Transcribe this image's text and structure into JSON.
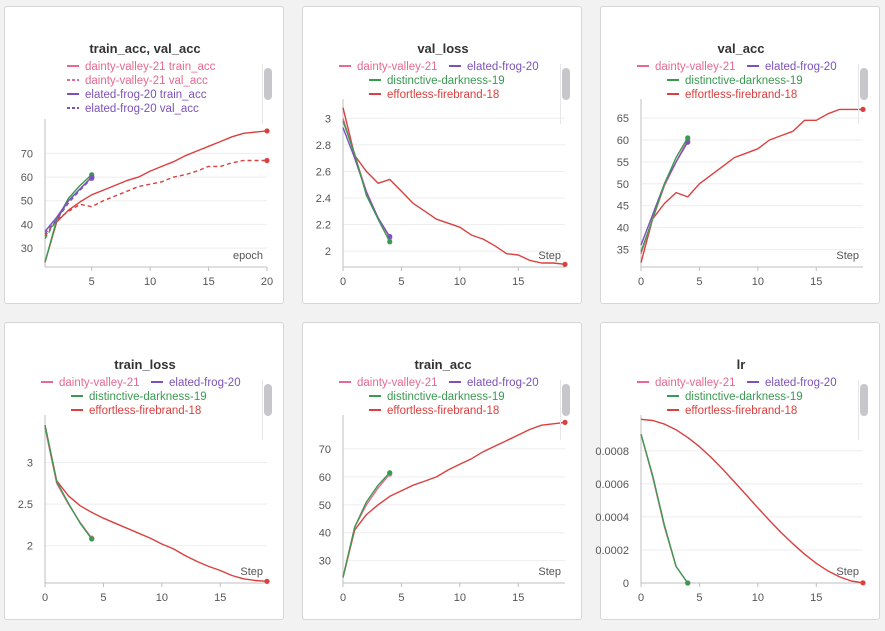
{
  "colors": {
    "dainty-valley-21": "#e8698f",
    "elated-frog-20": "#7b52b9",
    "distinctive-darkness-19": "#3a9a52",
    "effortless-firebrand-18": "#d9403f"
  },
  "chart_data": [
    {
      "id": "p1",
      "type": "line",
      "title": "train_acc, val_acc",
      "xlabel": "epoch",
      "ylabel": "",
      "xlim": [
        1,
        20
      ],
      "ylim": [
        22,
        82
      ],
      "xticks": [
        5,
        10,
        15,
        20
      ],
      "yticks": [
        30,
        40,
        50,
        60,
        70
      ],
      "legend_layout": "single",
      "legend": [
        {
          "label": "dainty-valley-21 train_acc",
          "color": "#e8698f",
          "dash": false
        },
        {
          "label": "dainty-valley-21 val_acc",
          "color": "#e8698f",
          "dash": true
        },
        {
          "label": "elated-frog-20 train_acc",
          "color": "#7b52b9",
          "dash": false
        },
        {
          "label": "elated-frog-20 val_acc",
          "color": "#7b52b9",
          "dash": true
        }
      ],
      "series": [
        {
          "color": "#d9403f",
          "dash": false,
          "x": [
            1,
            2,
            3,
            4,
            5,
            6,
            7,
            8,
            9,
            10,
            11,
            12,
            13,
            14,
            15,
            16,
            17,
            18,
            19,
            20
          ],
          "y": [
            24,
            41,
            46,
            49.5,
            52.5,
            54.5,
            56.5,
            58.5,
            60,
            62.5,
            64.5,
            66.5,
            69,
            71,
            73,
            75,
            77,
            78.5,
            79,
            79.5
          ]
        },
        {
          "color": "#d9403f",
          "dash": true,
          "x": [
            1,
            2,
            3,
            4,
            5,
            6,
            7,
            8,
            9,
            10,
            11,
            12,
            13,
            14,
            15,
            16,
            17,
            18,
            19,
            20
          ],
          "y": [
            35,
            42,
            45.5,
            48.5,
            47.5,
            50,
            52,
            54,
            56,
            57,
            58,
            60,
            61,
            62.5,
            64.5,
            64.5,
            66,
            67,
            67,
            67
          ]
        },
        {
          "color": "#3a9a52",
          "dash": false,
          "x": [
            1,
            2,
            3,
            4,
            5
          ],
          "y": [
            24,
            42,
            51,
            56.5,
            61
          ]
        },
        {
          "color": "#3a9a52",
          "dash": true,
          "x": [
            1,
            2,
            3,
            4,
            5
          ],
          "y": [
            34,
            42,
            50,
            55,
            60
          ]
        },
        {
          "color": "#7b52b9",
          "dash": false,
          "x": [
            1,
            2,
            3,
            4,
            5
          ],
          "y": [
            37,
            43,
            50,
            55,
            60
          ]
        },
        {
          "color": "#7b52b9",
          "dash": true,
          "x": [
            1,
            2,
            3,
            4,
            5
          ],
          "y": [
            36,
            42,
            49,
            54.5,
            59.5
          ]
        }
      ]
    },
    {
      "id": "p2",
      "type": "line",
      "title": "val_loss",
      "xlabel": "Step",
      "ylabel": "",
      "xlim": [
        0,
        19
      ],
      "ylim": [
        1.88,
        3.1
      ],
      "xticks": [
        0,
        5,
        10,
        15
      ],
      "yticks": [
        2,
        2.2,
        2.4,
        2.6,
        2.8,
        3
      ],
      "legend_layout": "grid",
      "legend": [
        {
          "label": "dainty-valley-21",
          "color": "#e8698f",
          "dash": false
        },
        {
          "label": "elated-frog-20",
          "color": "#7b52b9",
          "dash": false
        },
        {
          "label": "distinctive-darkness-19",
          "color": "#3a9a52",
          "dash": false
        },
        {
          "label": "effortless-firebrand-18",
          "color": "#d9403f",
          "dash": false
        }
      ],
      "series": [
        {
          "color": "#d9403f",
          "dash": false,
          "x": [
            0,
            1,
            2,
            3,
            4,
            5,
            6,
            7,
            8,
            9,
            10,
            11,
            12,
            13,
            14,
            15,
            16,
            17,
            18,
            19
          ],
          "y": [
            3.08,
            2.72,
            2.6,
            2.51,
            2.54,
            2.45,
            2.36,
            2.3,
            2.24,
            2.21,
            2.18,
            2.12,
            2.09,
            2.04,
            1.98,
            1.97,
            1.93,
            1.91,
            1.91,
            1.9
          ]
        },
        {
          "color": "#e8698f",
          "dash": false,
          "x": [
            0,
            1,
            2,
            3,
            4
          ],
          "y": [
            3.0,
            2.72,
            2.45,
            2.25,
            2.1
          ]
        },
        {
          "color": "#7b52b9",
          "dash": false,
          "x": [
            0,
            1,
            2,
            3,
            4
          ],
          "y": [
            2.93,
            2.7,
            2.44,
            2.25,
            2.11
          ]
        },
        {
          "color": "#3a9a52",
          "dash": false,
          "x": [
            0,
            1,
            2,
            3,
            4
          ],
          "y": [
            2.98,
            2.73,
            2.42,
            2.24,
            2.07
          ]
        }
      ]
    },
    {
      "id": "p3",
      "type": "line",
      "title": "val_acc",
      "xlabel": "Step",
      "ylabel": "",
      "xlim": [
        0,
        19
      ],
      "ylim": [
        31,
        68
      ],
      "xticks": [
        0,
        5,
        10,
        15
      ],
      "yticks": [
        35,
        40,
        45,
        50,
        55,
        60,
        65
      ],
      "legend_layout": "grid",
      "legend": [
        {
          "label": "dainty-valley-21",
          "color": "#e8698f",
          "dash": false
        },
        {
          "label": "elated-frog-20",
          "color": "#7b52b9",
          "dash": false
        },
        {
          "label": "distinctive-darkness-19",
          "color": "#3a9a52",
          "dash": false
        },
        {
          "label": "effortless-firebrand-18",
          "color": "#d9403f",
          "dash": false
        }
      ],
      "series": [
        {
          "color": "#d9403f",
          "dash": false,
          "x": [
            0,
            1,
            2,
            3,
            4,
            5,
            6,
            7,
            8,
            9,
            10,
            11,
            12,
            13,
            14,
            15,
            16,
            17,
            18,
            19
          ],
          "y": [
            32,
            42,
            45.5,
            48,
            47,
            50,
            52,
            54,
            56,
            57,
            58,
            60,
            61,
            62,
            64.5,
            64.5,
            66,
            67,
            67,
            67
          ]
        },
        {
          "color": "#e8698f",
          "dash": false,
          "x": [
            0,
            1,
            2,
            3,
            4
          ],
          "y": [
            34,
            42,
            49.5,
            55,
            60
          ]
        },
        {
          "color": "#7b52b9",
          "dash": false,
          "x": [
            0,
            1,
            2,
            3,
            4
          ],
          "y": [
            36,
            43,
            50,
            55,
            59.5
          ]
        },
        {
          "color": "#3a9a52",
          "dash": false,
          "x": [
            0,
            1,
            2,
            3,
            4
          ],
          "y": [
            34.5,
            42,
            50,
            56,
            60.5
          ]
        }
      ]
    },
    {
      "id": "p4",
      "type": "line",
      "title": "train_loss",
      "xlabel": "Step",
      "ylabel": "",
      "xlim": [
        0,
        19
      ],
      "ylim": [
        1.55,
        3.5
      ],
      "xticks": [
        0,
        5,
        10,
        15
      ],
      "yticks": [
        2,
        2.5,
        3
      ],
      "legend_layout": "grid",
      "legend": [
        {
          "label": "dainty-valley-21",
          "color": "#e8698f",
          "dash": false
        },
        {
          "label": "elated-frog-20",
          "color": "#7b52b9",
          "dash": false
        },
        {
          "label": "distinctive-darkness-19",
          "color": "#3a9a52",
          "dash": false
        },
        {
          "label": "effortless-firebrand-18",
          "color": "#d9403f",
          "dash": false
        }
      ],
      "series": [
        {
          "color": "#d9403f",
          "dash": false,
          "x": [
            0,
            1,
            2,
            3,
            4,
            5,
            6,
            7,
            8,
            9,
            10,
            11,
            12,
            13,
            14,
            15,
            16,
            17,
            18,
            19
          ],
          "y": [
            3.45,
            2.78,
            2.6,
            2.48,
            2.4,
            2.33,
            2.27,
            2.21,
            2.15,
            2.09,
            2.02,
            1.96,
            1.88,
            1.81,
            1.75,
            1.7,
            1.64,
            1.6,
            1.58,
            1.57
          ]
        },
        {
          "color": "#e8698f",
          "dash": false,
          "x": [
            0,
            1,
            2,
            3,
            4
          ],
          "y": [
            3.42,
            2.75,
            2.5,
            2.28,
            2.09
          ]
        },
        {
          "color": "#3a9a52",
          "dash": false,
          "x": [
            0,
            1,
            2,
            3,
            4
          ],
          "y": [
            3.45,
            2.77,
            2.51,
            2.27,
            2.08
          ]
        }
      ]
    },
    {
      "id": "p5",
      "type": "line",
      "title": "train_acc",
      "xlabel": "Step",
      "ylabel": "",
      "xlim": [
        0,
        19
      ],
      "ylim": [
        22,
        80
      ],
      "xticks": [
        0,
        5,
        10,
        15
      ],
      "yticks": [
        30,
        40,
        50,
        60,
        70
      ],
      "legend_layout": "grid",
      "legend": [
        {
          "label": "dainty-valley-21",
          "color": "#e8698f",
          "dash": false
        },
        {
          "label": "elated-frog-20",
          "color": "#7b52b9",
          "dash": false
        },
        {
          "label": "distinctive-darkness-19",
          "color": "#3a9a52",
          "dash": false
        },
        {
          "label": "effortless-firebrand-18",
          "color": "#d9403f",
          "dash": false
        }
      ],
      "series": [
        {
          "color": "#d9403f",
          "dash": false,
          "x": [
            0,
            1,
            2,
            3,
            4,
            5,
            6,
            7,
            8,
            9,
            10,
            11,
            12,
            13,
            14,
            15,
            16,
            17,
            18,
            19
          ],
          "y": [
            24,
            41,
            46.5,
            50,
            53,
            55,
            57,
            58.5,
            60,
            62.5,
            64.5,
            66.5,
            69,
            71,
            73,
            75,
            77,
            78.5,
            79,
            79.5
          ]
        },
        {
          "color": "#e8698f",
          "dash": false,
          "x": [
            0,
            1,
            2,
            3,
            4
          ],
          "y": [
            24,
            42,
            50,
            56,
            61
          ]
        },
        {
          "color": "#3a9a52",
          "dash": false,
          "x": [
            0,
            1,
            2,
            3,
            4
          ],
          "y": [
            24,
            42,
            51,
            57,
            61.5
          ]
        }
      ]
    },
    {
      "id": "p6",
      "type": "line",
      "title": "lr",
      "xlabel": "Step",
      "ylabel": "",
      "xlim": [
        0,
        19
      ],
      "ylim": [
        0,
        0.00098
      ],
      "xticks": [
        0,
        5,
        10,
        15
      ],
      "yticks": [
        0,
        0.0002,
        0.0004,
        0.0006,
        0.0008
      ],
      "ytick_labels": [
        "0",
        "0.0002",
        "0.0004",
        "0.0006",
        "0.0008"
      ],
      "legend_layout": "grid",
      "legend": [
        {
          "label": "dainty-valley-21",
          "color": "#e8698f",
          "dash": false
        },
        {
          "label": "elated-frog-20",
          "color": "#7b52b9",
          "dash": false
        },
        {
          "label": "distinctive-darkness-19",
          "color": "#3a9a52",
          "dash": false
        },
        {
          "label": "effortless-firebrand-18",
          "color": "#d9403f",
          "dash": false
        }
      ],
      "series": [
        {
          "color": "#d9403f",
          "dash": false,
          "x": [
            0,
            1,
            2,
            3,
            4,
            5,
            6,
            7,
            8,
            9,
            10,
            11,
            12,
            13,
            14,
            15,
            16,
            17,
            18,
            19
          ],
          "y": [
            0.00099,
            0.000983,
            0.000961,
            0.000927,
            0.000881,
            0.000825,
            0.00076,
            0.000688,
            0.000611,
            0.000533,
            0.000455,
            0.000378,
            0.000305,
            0.000237,
            0.000174,
            0.000119,
            7.3e-05,
            3.7e-05,
            1.2e-05,
            1e-06
          ]
        },
        {
          "color": "#e8698f",
          "dash": false,
          "x": [
            0,
            1,
            2,
            3,
            4
          ],
          "y": [
            0.0009,
            0.00064,
            0.00034,
            0.0001,
            0.0
          ]
        },
        {
          "color": "#3a9a52",
          "dash": false,
          "x": [
            0,
            1,
            2,
            3,
            4
          ],
          "y": [
            0.0009,
            0.00065,
            0.00035,
            0.0001,
            0.0
          ]
        }
      ]
    }
  ]
}
